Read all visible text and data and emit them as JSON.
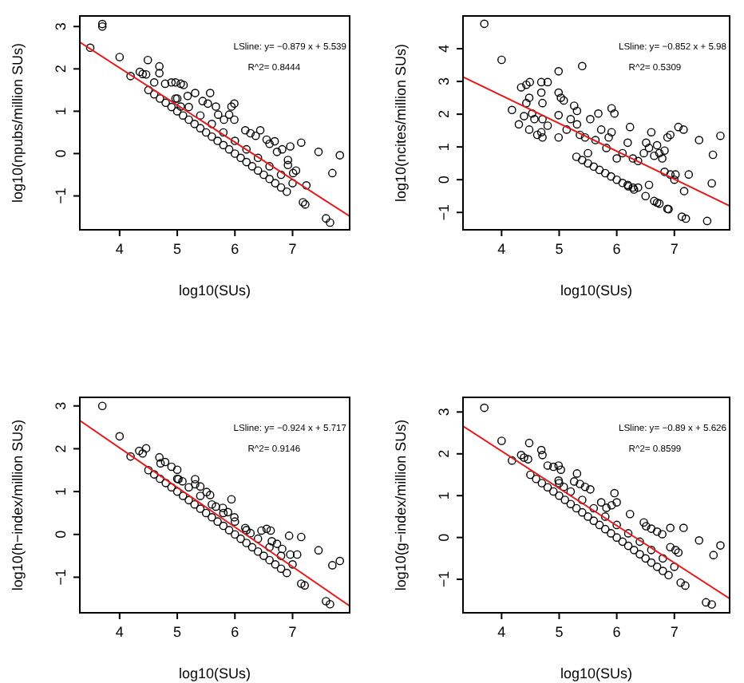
{
  "chart_data": [
    {
      "type": "scatter",
      "xlabel": "log10(SUs)",
      "ylabel": "log10(npubs/million SUs)",
      "xlim": [
        3.31,
        7.99
      ],
      "ylim": [
        -1.8,
        3.25
      ],
      "xticks": [
        4,
        5,
        6,
        7
      ],
      "yticks": [
        -1,
        0,
        1,
        2,
        3
      ],
      "grid": false,
      "annotations": [
        "LSline: y= −0.879 x + 5.539",
        "R^2= 0.8444"
      ],
      "series": [
        {
          "marker": "circle",
          "color": "#000000",
          "x": [
            3.7,
            3.7,
            3.49,
            4.0,
            4.19,
            4.35,
            4.4,
            4.46,
            4.49,
            4.6,
            4.69,
            4.69,
            4.79,
            4.9,
            4.97,
            5.06,
            5.11,
            4.97,
            5.06,
            5.18,
            5.31,
            5.44,
            5.53,
            5.57,
            5.67,
            5.71,
            5.81,
            5.9,
            5.94,
            5.99,
            5.99,
            6.18,
            6.27,
            6.36,
            6.44,
            6.55,
            6.6,
            6.69,
            6.73,
            6.82,
            6.92,
            6.96,
            6.92,
            7.01,
            7.06,
            7.15,
            7.18,
            7.22,
            7.24,
            7.45,
            7.58,
            7.65,
            7.69,
            7.82,
            4.5,
            4.6,
            4.7,
            4.8,
            4.9,
            5.0,
            5.1,
            5.2,
            5.3,
            5.4,
            5.5,
            5.6,
            5.7,
            5.8,
            5.9,
            6.0,
            6.1,
            6.2,
            6.3,
            6.4,
            6.5,
            6.6,
            6.7,
            6.8,
            6.9,
            5.0,
            5.2,
            5.4,
            5.6,
            5.8,
            6.0,
            6.2,
            6.4,
            6.6,
            6.8,
            7.0
          ],
          "values": [
            3.06,
            3.0,
            2.5,
            2.28,
            1.83,
            1.93,
            1.88,
            1.87,
            2.21,
            1.68,
            2.06,
            1.9,
            1.65,
            1.68,
            1.68,
            1.65,
            1.62,
            1.3,
            1.11,
            1.36,
            1.43,
            1.24,
            1.18,
            1.43,
            1.11,
            0.92,
            0.8,
            0.92,
            1.11,
            1.18,
            0.8,
            0.55,
            0.48,
            0.42,
            0.55,
            0.33,
            0.23,
            0.29,
            0.04,
            0.1,
            -0.15,
            0.17,
            -0.27,
            -0.46,
            -0.4,
            0.26,
            -1.15,
            -1.2,
            -0.75,
            0.04,
            -1.53,
            -1.63,
            -0.46,
            -0.04,
            1.5,
            1.4,
            1.3,
            1.2,
            1.1,
            1.0,
            0.9,
            0.8,
            0.7,
            0.6,
            0.5,
            0.4,
            0.3,
            0.2,
            0.1,
            0.0,
            -0.1,
            -0.2,
            -0.3,
            -0.4,
            -0.5,
            -0.6,
            -0.7,
            -0.8,
            -0.9,
            1.3,
            1.1,
            0.9,
            0.7,
            0.5,
            0.3,
            0.1,
            -0.1,
            -0.3,
            -0.5,
            -0.7
          ]
        },
        {
          "type": "line",
          "color": "#e41a1c",
          "x": [
            3.31,
            7.99
          ],
          "values": [
            2.63,
            -1.48
          ]
        }
      ]
    },
    {
      "type": "scatter",
      "xlabel": "log10(SUs)",
      "ylabel": "log10(ncites/million SUs)",
      "xlim": [
        3.33,
        7.96
      ],
      "ylim": [
        -1.53,
        5.0
      ],
      "xticks": [
        4,
        5,
        6,
        7
      ],
      "yticks": [
        -1,
        0,
        1,
        2,
        3,
        4
      ],
      "grid": false,
      "annotations": [
        "LSline: y= −0.852 x + 5.98",
        "R^2= 0.5309"
      ],
      "series": [
        {
          "marker": "circle",
          "color": "#000000",
          "x": [
            3.7,
            4.0,
            4.18,
            4.3,
            4.34,
            4.43,
            4.49,
            4.39,
            4.43,
            4.48,
            4.48,
            4.53,
            4.57,
            4.62,
            4.69,
            4.69,
            4.71,
            4.71,
            4.69,
            4.8,
            4.71,
            4.8,
            4.99,
            4.99,
            5.03,
            4.99,
            4.99,
            5.08,
            5.13,
            5.2,
            5.26,
            5.31,
            5.31,
            5.36,
            5.4,
            5.45,
            5.5,
            5.54,
            5.63,
            5.68,
            5.73,
            5.82,
            5.86,
            5.91,
            5.91,
            5.96,
            6.0,
            6.1,
            6.19,
            6.23,
            6.28,
            6.37,
            6.47,
            6.51,
            6.56,
            6.6,
            6.65,
            6.7,
            6.74,
            6.79,
            6.83,
            6.88,
            6.93,
            6.83,
            6.93,
            7.0,
            7.02,
            7.07,
            7.16,
            7.13,
            7.2,
            7.25,
            7.17,
            7.43,
            7.57,
            7.65,
            7.67,
            7.8,
            6.19,
            6.28,
            6.37,
            6.56,
            6.65,
            6.74,
            6.88,
            5.3,
            5.4,
            5.5,
            5.6,
            5.7,
            5.8,
            5.9,
            6.0,
            6.1,
            6.2,
            6.3,
            6.5,
            6.7,
            6.9
          ],
          "values": [
            4.76,
            3.66,
            2.13,
            1.69,
            2.82,
            2.9,
            2.98,
            1.94,
            2.34,
            2.5,
            1.53,
            2.02,
            1.85,
            1.37,
            1.45,
            2.66,
            2.34,
            1.85,
            2.98,
            2.98,
            1.29,
            1.65,
            3.31,
            2.66,
            2.5,
            1.97,
            1.29,
            2.42,
            1.53,
            1.85,
            2.26,
            1.69,
            2.1,
            1.37,
            3.47,
            1.29,
            0.81,
            1.85,
            1.21,
            2.02,
            1.53,
            0.97,
            1.29,
            1.45,
            2.18,
            2.02,
            0.65,
            0.81,
            1.13,
            1.61,
            0.65,
            0.57,
            0.81,
            1.13,
            0.97,
            1.45,
            0.73,
            1.05,
            0.81,
            0.65,
            0.89,
            1.29,
            1.37,
            0.24,
            0.16,
            0.0,
            0.16,
            1.61,
            1.53,
            -1.13,
            -1.19,
            0.16,
            -0.35,
            1.21,
            -1.26,
            -0.11,
            0.76,
            1.34,
            -0.16,
            -0.24,
            -0.24,
            -0.16,
            -0.65,
            -0.73,
            -0.89,
            0.7,
            0.6,
            0.5,
            0.4,
            0.3,
            0.2,
            0.1,
            0.0,
            -0.1,
            -0.2,
            -0.3,
            -0.5,
            -0.7,
            -0.9
          ]
        },
        {
          "type": "line",
          "color": "#e41a1c",
          "x": [
            3.33,
            7.96
          ],
          "values": [
            3.14,
            -0.8
          ]
        }
      ]
    },
    {
      "type": "scatter",
      "xlabel": "log10(SUs)",
      "ylabel": "log10(h−index/million SUs)",
      "xlim": [
        3.31,
        7.99
      ],
      "ylim": [
        -1.83,
        3.2
      ],
      "xticks": [
        4,
        5,
        6,
        7
      ],
      "yticks": [
        -1,
        0,
        1,
        2,
        3
      ],
      "grid": false,
      "annotations": [
        "LSline: y= −0.924 x + 5.717",
        "R^2= 0.9146"
      ],
      "series": [
        {
          "marker": "circle",
          "color": "#000000",
          "x": [
            3.7,
            4.0,
            4.19,
            4.34,
            4.4,
            4.46,
            4.69,
            4.71,
            4.79,
            4.9,
            5.0,
            5.02,
            5.09,
            5.31,
            5.31,
            5.4,
            5.51,
            5.57,
            5.67,
            5.79,
            5.88,
            5.94,
            5.99,
            6.18,
            6.27,
            6.46,
            6.55,
            6.62,
            6.64,
            6.73,
            6.82,
            6.94,
            6.96,
            7.08,
            7.15,
            7.15,
            7.21,
            7.45,
            7.58,
            7.65,
            7.69,
            7.82,
            4.5,
            4.6,
            4.7,
            4.8,
            4.9,
            5.0,
            5.1,
            5.2,
            5.3,
            5.4,
            5.5,
            5.6,
            5.7,
            5.8,
            5.9,
            6.0,
            6.1,
            6.2,
            6.3,
            6.4,
            6.5,
            6.6,
            6.7,
            6.8,
            6.9,
            5.0,
            5.2,
            5.4,
            5.6,
            5.8,
            6.0,
            6.2,
            6.4,
            6.6,
            6.8,
            7.0
          ],
          "values": [
            3.0,
            2.29,
            1.82,
            1.95,
            1.89,
            2.01,
            1.8,
            1.66,
            1.69,
            1.58,
            1.51,
            1.29,
            1.24,
            1.29,
            1.17,
            1.12,
            0.99,
            0.92,
            0.65,
            0.62,
            0.52,
            0.82,
            0.4,
            0.15,
            0.03,
            0.09,
            0.13,
            0.09,
            -0.16,
            -0.22,
            -0.34,
            -0.03,
            -0.47,
            -0.47,
            -0.06,
            -1.15,
            -1.19,
            -0.37,
            -1.56,
            -1.63,
            -0.72,
            -0.62,
            1.5,
            1.4,
            1.3,
            1.2,
            1.1,
            1.0,
            0.9,
            0.8,
            0.7,
            0.6,
            0.5,
            0.4,
            0.3,
            0.2,
            0.1,
            0.0,
            -0.1,
            -0.2,
            -0.3,
            -0.4,
            -0.5,
            -0.6,
            -0.7,
            -0.8,
            -0.9,
            1.3,
            1.1,
            0.9,
            0.7,
            0.5,
            0.3,
            0.1,
            -0.1,
            -0.3,
            -0.5,
            -0.7
          ]
        },
        {
          "type": "line",
          "color": "#e41a1c",
          "x": [
            3.31,
            7.99
          ],
          "values": [
            2.66,
            -1.67
          ]
        }
      ]
    },
    {
      "type": "scatter",
      "xlabel": "log10(SUs)",
      "ylabel": "log10(g−index/million SUs)",
      "xlim": [
        3.33,
        7.96
      ],
      "ylim": [
        -1.8,
        3.35
      ],
      "xticks": [
        4,
        5,
        6,
        7
      ],
      "yticks": [
        -1,
        0,
        1,
        2,
        3
      ],
      "grid": false,
      "annotations": [
        "LSline: y= −0.89 x + 5.626",
        "R^2= 0.8599"
      ],
      "series": [
        {
          "marker": "circle",
          "color": "#000000",
          "x": [
            3.7,
            4.0,
            4.18,
            4.34,
            4.39,
            4.46,
            4.48,
            4.69,
            4.71,
            4.8,
            4.9,
            4.99,
            5.03,
            4.99,
            5.08,
            5.31,
            5.26,
            5.36,
            5.45,
            5.54,
            5.73,
            5.82,
            5.91,
            5.96,
            6.0,
            6.23,
            6.47,
            6.51,
            6.6,
            6.7,
            6.79,
            6.93,
            6.93,
            7.02,
            7.07,
            7.16,
            7.11,
            7.19,
            7.43,
            7.55,
            7.65,
            7.68,
            7.8,
            4.5,
            4.6,
            4.7,
            4.8,
            4.9,
            5.0,
            5.1,
            5.2,
            5.3,
            5.4,
            5.5,
            5.6,
            5.7,
            5.8,
            5.9,
            6.0,
            6.1,
            6.2,
            6.3,
            6.4,
            6.5,
            6.6,
            6.7,
            6.8,
            6.9,
            5.0,
            5.2,
            5.4,
            5.6,
            5.8,
            6.0,
            6.2,
            6.4,
            6.6,
            6.8,
            7.0
          ],
          "values": [
            3.1,
            2.31,
            1.84,
            1.97,
            1.91,
            1.87,
            2.26,
            2.09,
            1.97,
            1.72,
            1.69,
            1.72,
            1.62,
            1.36,
            1.21,
            1.53,
            1.34,
            1.28,
            1.21,
            1.15,
            0.84,
            0.71,
            0.77,
            1.06,
            0.84,
            0.56,
            0.36,
            0.27,
            0.21,
            0.14,
            0.08,
            0.23,
            -0.23,
            -0.3,
            -0.36,
            0.23,
            -1.08,
            -1.15,
            -0.07,
            -1.55,
            -1.6,
            -0.42,
            -0.19,
            1.5,
            1.4,
            1.3,
            1.2,
            1.1,
            1.0,
            0.9,
            0.8,
            0.7,
            0.6,
            0.5,
            0.4,
            0.3,
            0.2,
            0.1,
            0.0,
            -0.1,
            -0.2,
            -0.3,
            -0.4,
            -0.5,
            -0.6,
            -0.7,
            -0.8,
            -0.9,
            1.3,
            1.1,
            0.9,
            0.7,
            0.5,
            0.3,
            0.1,
            -0.1,
            -0.3,
            -0.5,
            -0.7
          ]
        },
        {
          "type": "line",
          "color": "#e41a1c",
          "x": [
            3.33,
            7.96
          ],
          "values": [
            2.66,
            -1.46
          ]
        }
      ]
    }
  ]
}
